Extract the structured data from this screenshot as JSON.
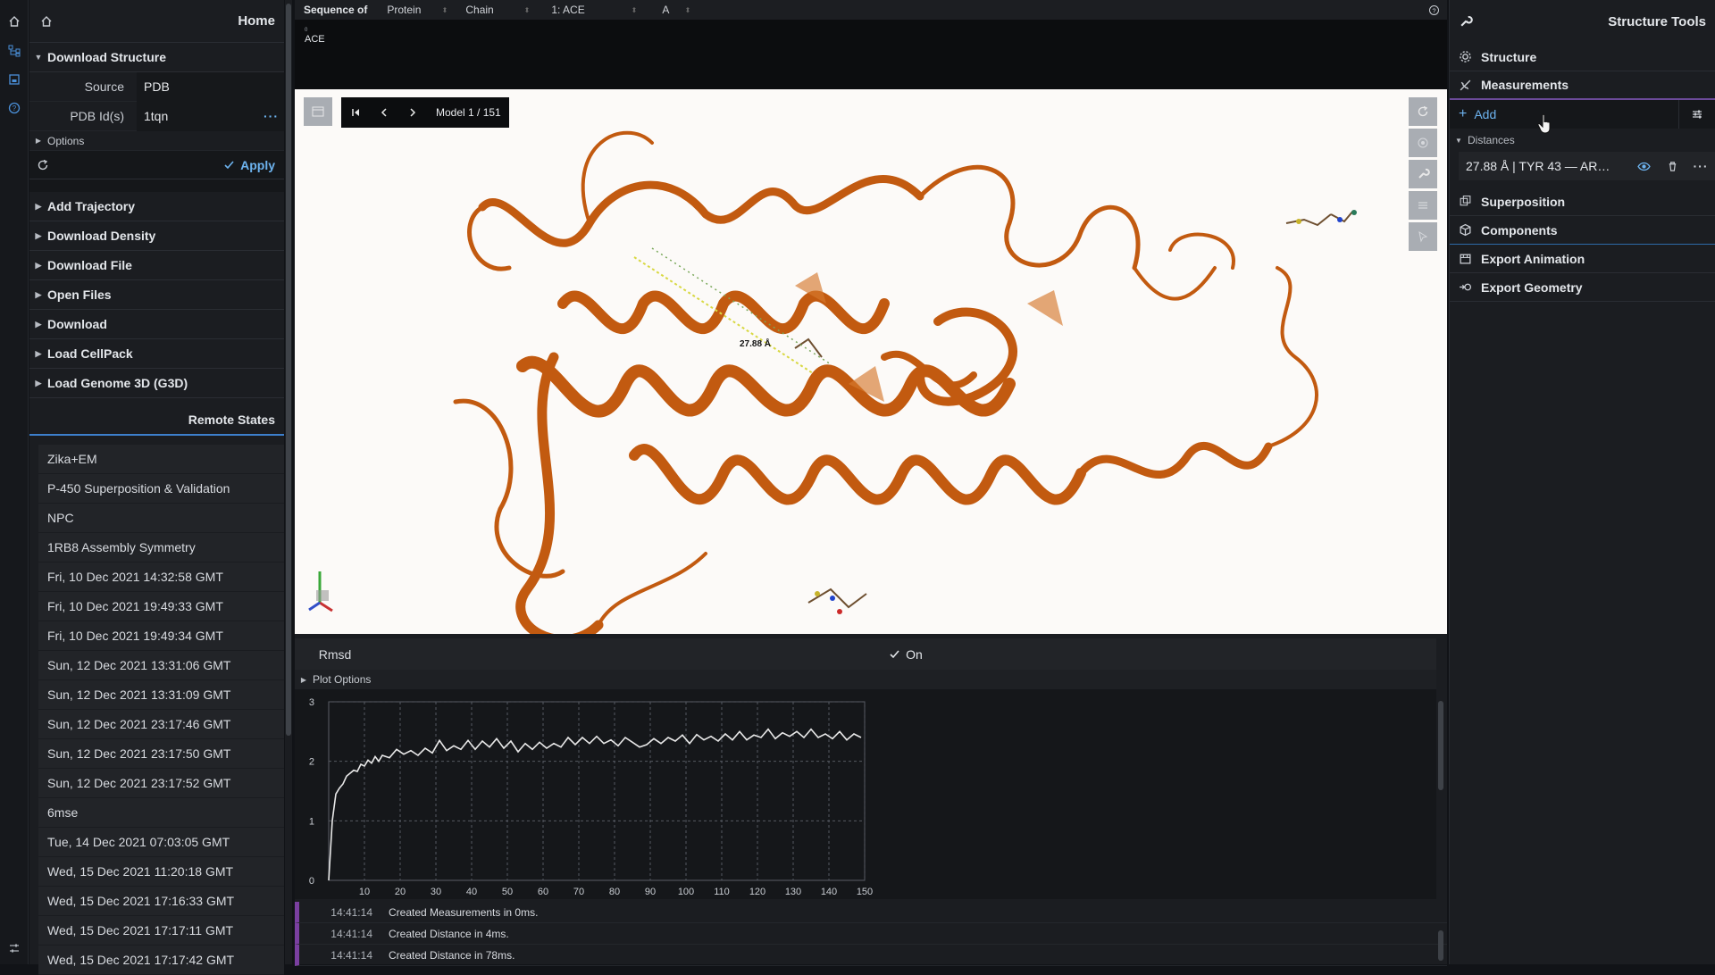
{
  "left_panel": {
    "title": "Home",
    "download_structure": {
      "title": "Download Structure",
      "source_label": "Source",
      "source_value": "PDB",
      "pdb_label": "PDB Id(s)",
      "pdb_value": "1tqn",
      "options_label": "Options",
      "apply_label": "Apply"
    },
    "actions": [
      "Add Trajectory",
      "Download Density",
      "Download File",
      "Open Files",
      "Download",
      "Load CellPack",
      "Load Genome 3D (G3D)"
    ],
    "remote_states_title": "Remote States",
    "remote_states": [
      "Zika+EM",
      "P-450 Superposition & Validation",
      "NPC",
      "1RB8 Assembly Symmetry",
      "Fri, 10 Dec 2021 14:32:58 GMT",
      "Fri, 10 Dec 2021 19:49:33 GMT",
      "Fri, 10 Dec 2021 19:49:34 GMT",
      "Sun, 12 Dec 2021 13:31:06 GMT",
      "Sun, 12 Dec 2021 13:31:09 GMT",
      "Sun, 12 Dec 2021 23:17:46 GMT",
      "Sun, 12 Dec 2021 23:17:50 GMT",
      "Sun, 12 Dec 2021 23:17:52 GMT",
      "6mse",
      "Tue, 14 Dec 2021 07:03:05 GMT",
      "Wed, 15 Dec 2021 11:20:18 GMT",
      "Wed, 15 Dec 2021 17:16:33 GMT",
      "Wed, 15 Dec 2021 17:17:11 GMT",
      "Wed, 15 Dec 2021 17:17:42 GMT"
    ]
  },
  "sequence": {
    "label": "Sequence of",
    "type": "Protein",
    "mode": "Chain",
    "entity": "1: ACE",
    "chain": "A",
    "index": "0",
    "residue": "ACE"
  },
  "viewport": {
    "model_label": "Model 1 / 151",
    "distance_label": "27.88 Å",
    "ribbon_color": "#c8590c"
  },
  "plot": {
    "title": "Rmsd",
    "toggle_label": "On",
    "options_label": "Plot Options"
  },
  "chart_data": {
    "type": "line",
    "title": "",
    "xlabel": "",
    "ylabel": "",
    "xlim": [
      0,
      150
    ],
    "ylim": [
      0,
      3
    ],
    "xticks": [
      10,
      20,
      30,
      40,
      50,
      60,
      70,
      80,
      90,
      100,
      110,
      120,
      130,
      140,
      150
    ],
    "yticks": [
      0,
      1,
      2,
      3
    ],
    "grid": true,
    "series": [
      {
        "color": "#e8e8e8",
        "x": [
          0,
          1,
          2,
          3,
          4,
          5,
          6,
          7,
          8,
          9,
          10,
          11,
          12,
          13,
          14,
          15,
          17,
          19,
          21,
          23,
          25,
          27,
          29,
          31,
          33,
          35,
          37,
          39,
          41,
          43,
          45,
          47,
          49,
          51,
          53,
          55,
          57,
          59,
          61,
          63,
          65,
          67,
          69,
          71,
          73,
          75,
          77,
          79,
          81,
          83,
          85,
          87,
          89,
          91,
          93,
          95,
          97,
          99,
          101,
          103,
          105,
          107,
          109,
          111,
          113,
          115,
          117,
          119,
          121,
          123,
          125,
          127,
          129,
          131,
          133,
          135,
          137,
          139,
          141,
          143,
          145,
          147,
          149
        ],
        "y": [
          0.0,
          1.0,
          1.45,
          1.55,
          1.62,
          1.75,
          1.8,
          1.85,
          1.83,
          1.95,
          1.92,
          2.02,
          1.97,
          2.08,
          2.0,
          2.1,
          2.06,
          2.2,
          2.12,
          2.18,
          2.1,
          2.22,
          2.14,
          2.35,
          2.18,
          2.26,
          2.2,
          2.35,
          2.2,
          2.34,
          2.24,
          2.38,
          2.22,
          2.34,
          2.16,
          2.3,
          2.2,
          2.32,
          2.22,
          2.3,
          2.24,
          2.4,
          2.28,
          2.4,
          2.3,
          2.42,
          2.3,
          2.36,
          2.26,
          2.4,
          2.32,
          2.24,
          2.28,
          2.38,
          2.3,
          2.4,
          2.34,
          2.44,
          2.3,
          2.45,
          2.36,
          2.42,
          2.34,
          2.46,
          2.36,
          2.5,
          2.36,
          2.44,
          2.4,
          2.54,
          2.38,
          2.48,
          2.42,
          2.5,
          2.4,
          2.54,
          2.4,
          2.46,
          2.38,
          2.5,
          2.36,
          2.46,
          2.4
        ]
      }
    ]
  },
  "log": [
    {
      "time": "14:41:14",
      "message": "Created Measurements in 0ms."
    },
    {
      "time": "14:41:14",
      "message": "Created Distance in 4ms."
    },
    {
      "time": "14:41:14",
      "message": "Created Distance in 78ms."
    }
  ],
  "right_panel": {
    "title": "Structure Tools",
    "tools": {
      "structure": "Structure",
      "measurements": "Measurements",
      "superposition": "Superposition",
      "components": "Components",
      "export_animation": "Export Animation",
      "export_geometry": "Export Geometry"
    },
    "add_label": "Add",
    "distances_label": "Distances",
    "distance_item": "27.88 Å | TYR 43 — AR…"
  }
}
